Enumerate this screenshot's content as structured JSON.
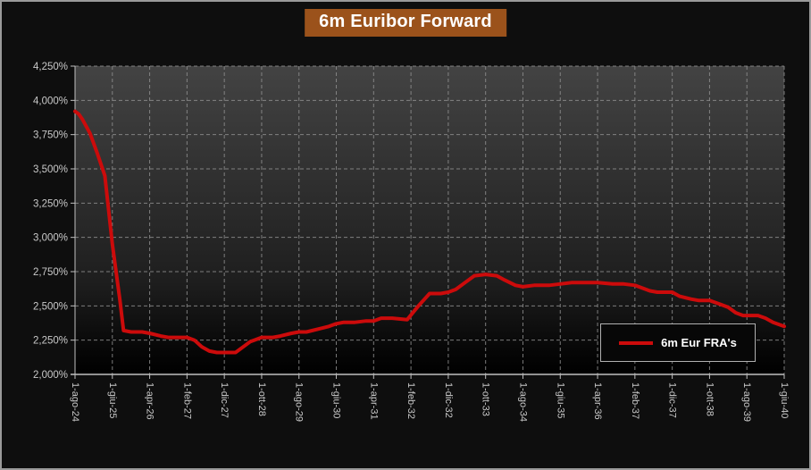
{
  "title": {
    "text": "6m Euribor Forward"
  },
  "legend": {
    "label": "6m Eur FRA's"
  },
  "colors": {
    "background": "#0e0e0e",
    "frame_border": "#9a9a9a",
    "title_bg": "#9b521b",
    "title_text": "#ffffff",
    "series_red": "#cc0b0b",
    "gridline": "#8f8f8f",
    "axis_line": "#c0c0c0",
    "tick_label": "#c9c9c9",
    "legend_bg": "#070707",
    "legend_border": "#b0b0b0",
    "plot_gradient_top": "#434343",
    "plot_gradient_mid": "#1e1e1e",
    "plot_gradient_low": "#060606",
    "plot_gradient_bottom": "#000000"
  },
  "chart_data": {
    "type": "line",
    "title": "6m Euribor Forward",
    "grid": true,
    "legend_position": "bottom-right",
    "x_unit": "months since 1-ago-24",
    "xlim": [
      0,
      190
    ],
    "ylim": [
      2.0,
      4.25
    ],
    "y_ticks": [
      {
        "value": 4.25,
        "label": "4,250%"
      },
      {
        "value": 4.0,
        "label": "4,000%"
      },
      {
        "value": 3.75,
        "label": "3,750%"
      },
      {
        "value": 3.5,
        "label": "3,500%"
      },
      {
        "value": 3.25,
        "label": "3,250%"
      },
      {
        "value": 3.0,
        "label": "3,000%"
      },
      {
        "value": 2.75,
        "label": "2,750%"
      },
      {
        "value": 2.5,
        "label": "2,500%"
      },
      {
        "value": 2.25,
        "label": "2,250%"
      },
      {
        "value": 2.0,
        "label": "2,000%"
      }
    ],
    "x_ticks": [
      {
        "pos": 0,
        "label": "1-ago-24"
      },
      {
        "pos": 10,
        "label": "1-giu-25"
      },
      {
        "pos": 20,
        "label": "1-apr-26"
      },
      {
        "pos": 30,
        "label": "1-feb-27"
      },
      {
        "pos": 40,
        "label": "1-dic-27"
      },
      {
        "pos": 50,
        "label": "1-ott-28"
      },
      {
        "pos": 60,
        "label": "1-ago-29"
      },
      {
        "pos": 70,
        "label": "1-giu-30"
      },
      {
        "pos": 80,
        "label": "1-apr-31"
      },
      {
        "pos": 90,
        "label": "1-feb-32"
      },
      {
        "pos": 100,
        "label": "1-dic-32"
      },
      {
        "pos": 110,
        "label": "1-ott-33"
      },
      {
        "pos": 120,
        "label": "1-ago-34"
      },
      {
        "pos": 130,
        "label": "1-giu-35"
      },
      {
        "pos": 140,
        "label": "1-apr-36"
      },
      {
        "pos": 150,
        "label": "1-feb-37"
      },
      {
        "pos": 160,
        "label": "1-dic-37"
      },
      {
        "pos": 170,
        "label": "1-ott-38"
      },
      {
        "pos": 180,
        "label": "1-ago-39"
      },
      {
        "pos": 190,
        "label": "1-giu-40"
      }
    ],
    "series": [
      {
        "name": "6m Eur FRA's",
        "color": "#cc0b0b",
        "points": [
          [
            0,
            3.92
          ],
          [
            1,
            3.9
          ],
          [
            2,
            3.86
          ],
          [
            4,
            3.76
          ],
          [
            6,
            3.61
          ],
          [
            8,
            3.45
          ],
          [
            10,
            2.95
          ],
          [
            12,
            2.55
          ],
          [
            13,
            2.32
          ],
          [
            15,
            2.31
          ],
          [
            18,
            2.31
          ],
          [
            20,
            2.3
          ],
          [
            23,
            2.28
          ],
          [
            25,
            2.27
          ],
          [
            30,
            2.27
          ],
          [
            32,
            2.25
          ],
          [
            34,
            2.2
          ],
          [
            36,
            2.17
          ],
          [
            38,
            2.16
          ],
          [
            43,
            2.16
          ],
          [
            45,
            2.2
          ],
          [
            47,
            2.24
          ],
          [
            48,
            2.25
          ],
          [
            50,
            2.27
          ],
          [
            53,
            2.27
          ],
          [
            55,
            2.28
          ],
          [
            58,
            2.3
          ],
          [
            60,
            2.31
          ],
          [
            62,
            2.31
          ],
          [
            65,
            2.33
          ],
          [
            68,
            2.35
          ],
          [
            70,
            2.37
          ],
          [
            72,
            2.38
          ],
          [
            75,
            2.38
          ],
          [
            78,
            2.39
          ],
          [
            80,
            2.39
          ],
          [
            82,
            2.41
          ],
          [
            85,
            2.41
          ],
          [
            89,
            2.4
          ],
          [
            92,
            2.5
          ],
          [
            95,
            2.59
          ],
          [
            98,
            2.59
          ],
          [
            100,
            2.6
          ],
          [
            102,
            2.62
          ],
          [
            105,
            2.68
          ],
          [
            107,
            2.72
          ],
          [
            110,
            2.73
          ],
          [
            113,
            2.72
          ],
          [
            115,
            2.69
          ],
          [
            118,
            2.65
          ],
          [
            120,
            2.64
          ],
          [
            123,
            2.65
          ],
          [
            127,
            2.65
          ],
          [
            130,
            2.66
          ],
          [
            133,
            2.67
          ],
          [
            137,
            2.67
          ],
          [
            140,
            2.67
          ],
          [
            144,
            2.66
          ],
          [
            147,
            2.66
          ],
          [
            150,
            2.65
          ],
          [
            152,
            2.63
          ],
          [
            154,
            2.61
          ],
          [
            156,
            2.6
          ],
          [
            160,
            2.6
          ],
          [
            162,
            2.57
          ],
          [
            165,
            2.55
          ],
          [
            167,
            2.54
          ],
          [
            170,
            2.54
          ],
          [
            173,
            2.51
          ],
          [
            175,
            2.49
          ],
          [
            177,
            2.45
          ],
          [
            179,
            2.43
          ],
          [
            183,
            2.43
          ],
          [
            185,
            2.41
          ],
          [
            187,
            2.38
          ],
          [
            190,
            2.35
          ]
        ]
      }
    ]
  }
}
